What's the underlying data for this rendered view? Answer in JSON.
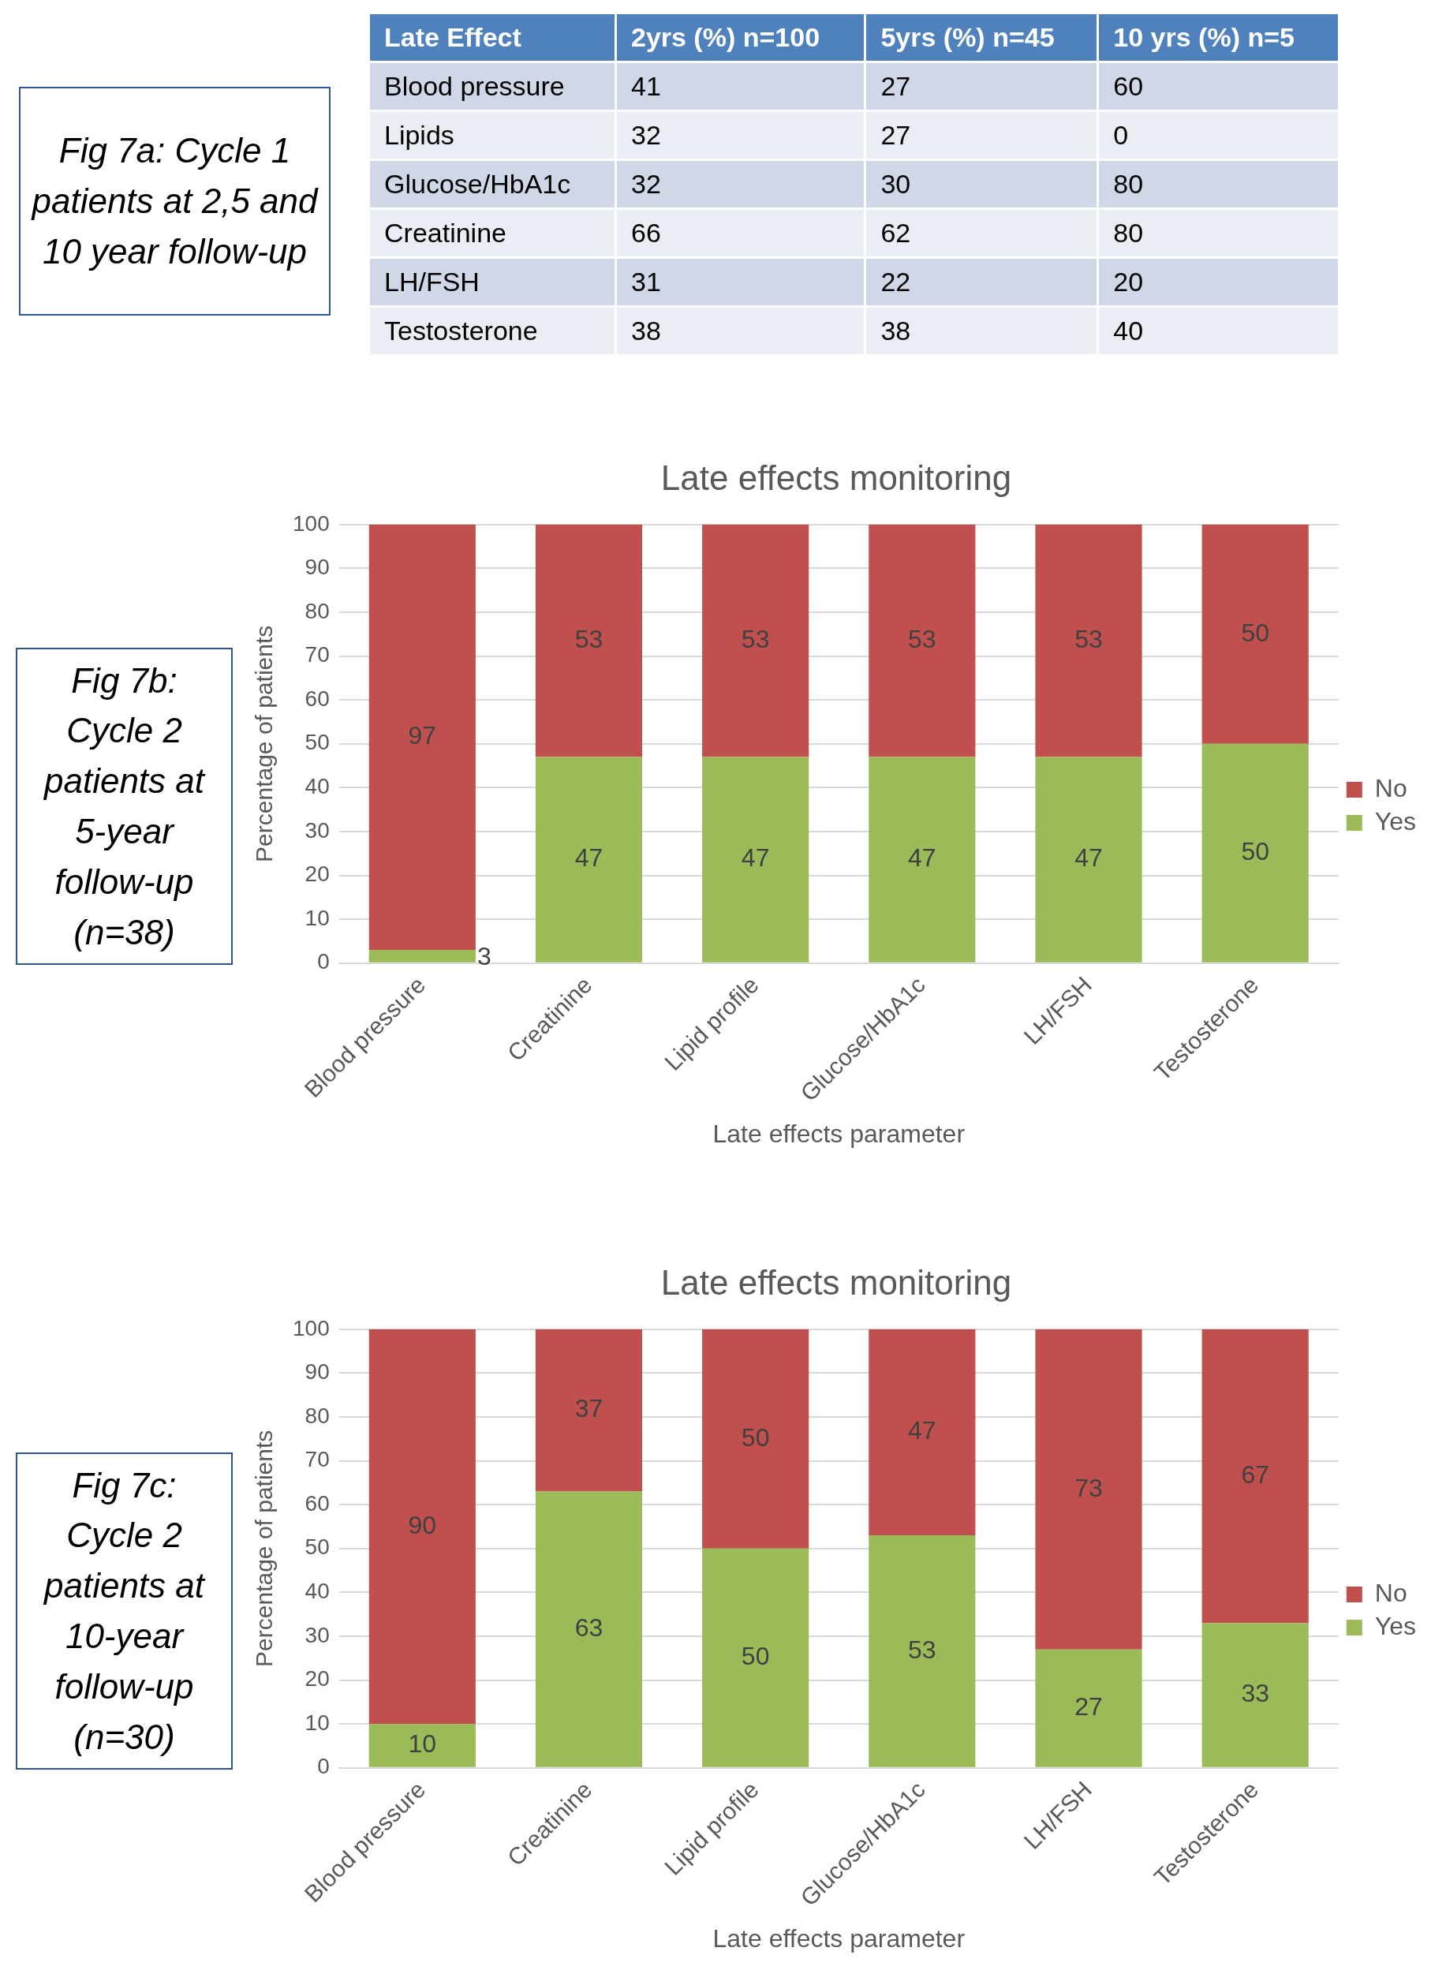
{
  "chart_data": [
    {
      "type": "other",
      "annotations": [
        "Fig 7a: Cycle 1 patients at 2,5 and 10 year follow-up"
      ],
      "xlabel": "Late Effect",
      "categories": [
        "Blood pressure",
        "Lipids",
        "Glucose/HbA1c",
        "Creatinine",
        "LH/FSH",
        "Testosterone"
      ],
      "data_labels": true,
      "series": [
        {
          "name": "2yrs (%) n=100",
          "values": [
            41,
            32,
            32,
            66,
            31,
            38
          ],
          "colors": [
            "#d0d8e8",
            "#e9edf4",
            "#d0d8e8",
            "#e9edf4",
            "#d0d8e8",
            "#e9edf4"
          ]
        },
        {
          "name": "5yrs (%) n=45",
          "values": [
            27,
            27,
            30,
            62,
            22,
            38
          ],
          "colors": [
            "#d0d8e8",
            "#e9edf4",
            "#d0d8e8",
            "#e9edf4",
            "#d0d8e8",
            "#e9edf4"
          ]
        },
        {
          "name": "10 yrs (%) n=5",
          "values": [
            60,
            0,
            80,
            80,
            20,
            40
          ],
          "colors": [
            "#d0d8e8",
            "#e9edf4",
            "#d0d8e8",
            "#e9edf4",
            "#d0d8e8",
            "#e9edf4"
          ]
        }
      ]
    },
    {
      "type": "bar",
      "stacked": true,
      "title": "Late effects monitoring",
      "xlabel": "Late effects parameter",
      "ylabel": "Percentage of patients",
      "annotations": [
        "Fig 7b: Cycle 2 patients at 5-year follow-up (n=38)"
      ],
      "categories": [
        "Blood pressure",
        "Creatinine",
        "Lipid profile",
        "Glucose/HbA1c",
        "LH/FSH",
        "Testosterone"
      ],
      "ylim": [
        0,
        100
      ],
      "yticks": [
        0,
        10,
        20,
        30,
        40,
        50,
        60,
        70,
        80,
        90,
        100
      ],
      "grid": "y",
      "legend": "right",
      "data_labels": true,
      "series": [
        {
          "name": "Yes",
          "color": "#9bbb59",
          "values": [
            3,
            47,
            47,
            47,
            47,
            50
          ]
        },
        {
          "name": "No",
          "color": "#c0504d",
          "values": [
            97,
            53,
            53,
            53,
            53,
            50
          ]
        }
      ]
    },
    {
      "type": "bar",
      "stacked": true,
      "title": "Late effects monitoring",
      "xlabel": "Late effects parameter",
      "ylabel": "Percentage of patients",
      "annotations": [
        "Fig 7c: Cycle 2 patients at 10-year follow-up (n=30)"
      ],
      "categories": [
        "Blood pressure",
        "Creatinine",
        "Lipid profile",
        "Glucose/HbA1c",
        "LH/FSH",
        "Testosterone"
      ],
      "ylim": [
        0,
        100
      ],
      "yticks": [
        0,
        10,
        20,
        30,
        40,
        50,
        60,
        70,
        80,
        90,
        100
      ],
      "grid": "y",
      "legend": "right",
      "data_labels": true,
      "series": [
        {
          "name": "Yes",
          "color": "#9bbb59",
          "values": [
            10,
            63,
            50,
            53,
            27,
            33
          ]
        },
        {
          "name": "No",
          "color": "#c0504d",
          "values": [
            90,
            37,
            50,
            47,
            73,
            67
          ]
        }
      ]
    }
  ]
}
